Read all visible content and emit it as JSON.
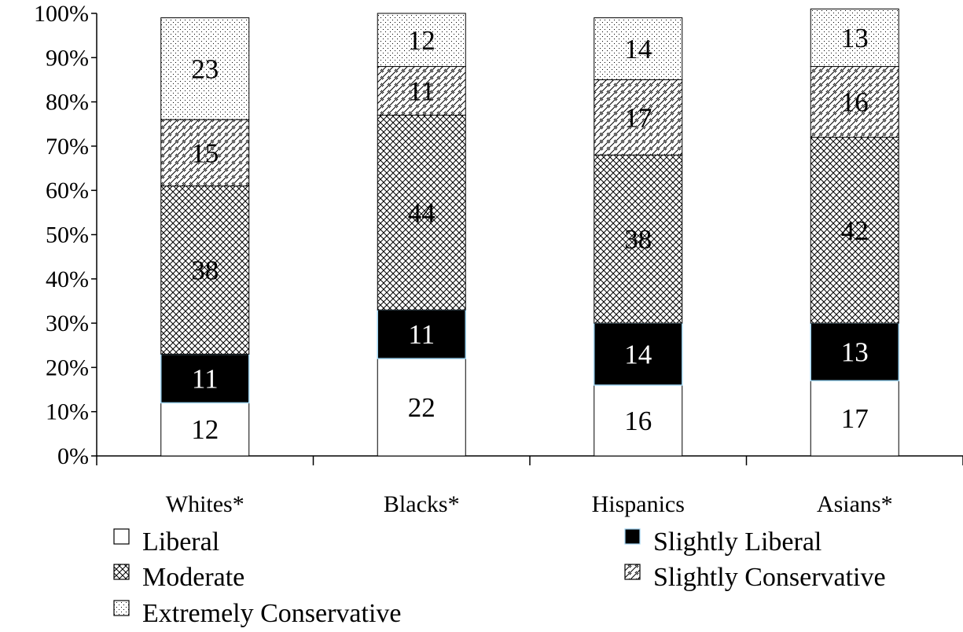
{
  "chart_data": {
    "type": "bar",
    "stacked": true,
    "percent_stacked": true,
    "title": "",
    "xlabel": "",
    "ylabel": "",
    "ylim": [
      0,
      100
    ],
    "y_ticks": [
      "0%",
      "10%",
      "20%",
      "30%",
      "40%",
      "50%",
      "60%",
      "70%",
      "80%",
      "90%",
      "100%"
    ],
    "categories": [
      "Whites*",
      "Blacks*",
      "Hispanics",
      "Asians*"
    ],
    "series": [
      {
        "name": "Liberal",
        "fill": "plain",
        "values": [
          12,
          22,
          16,
          17
        ]
      },
      {
        "name": "Slightly Liberal",
        "fill": "solid",
        "values": [
          11,
          11,
          14,
          13
        ]
      },
      {
        "name": "Moderate",
        "fill": "crosshatch",
        "values": [
          38,
          44,
          38,
          42
        ]
      },
      {
        "name": "Slightly Conservative",
        "fill": "diagonal",
        "values": [
          15,
          11,
          17,
          16
        ]
      },
      {
        "name": "Extremely Conservative",
        "fill": "dotted",
        "values": [
          23,
          12,
          14,
          13
        ]
      }
    ],
    "grid": false,
    "legend_position": "bottom",
    "colors": {
      "ink": "#000000",
      "paper": "#ffffff",
      "accent_edge": "#9fd3f0"
    }
  }
}
